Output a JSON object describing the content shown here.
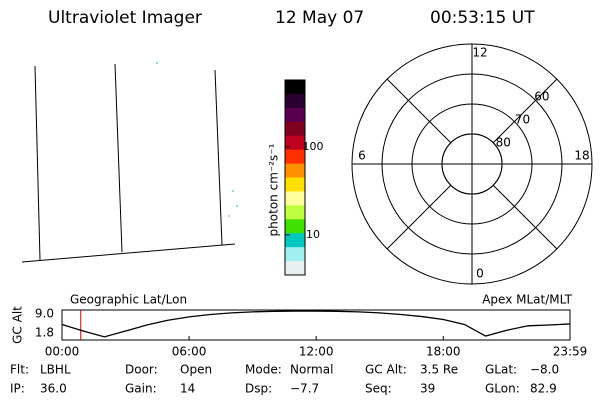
{
  "header": {
    "instrument": "Ultraviolet Imager",
    "date": "12 May 07",
    "time": "00:53:15 UT"
  },
  "map": {
    "label": "Geographic Lat/Lon"
  },
  "colorbar": {
    "label": "photon cm⁻²s⁻¹",
    "log": true,
    "lim": [
      3.5,
      575
    ],
    "ticks": [
      10,
      100
    ],
    "colors": [
      "#000000",
      "#2a0030",
      "#5a0050",
      "#800020",
      "#c00020",
      "#ff3000",
      "#ff9000",
      "#ffe000",
      "#ffffa0",
      "#c0ff40",
      "#40e000",
      "#00c8c0",
      "#a0f0f0",
      "#e8f0f0"
    ]
  },
  "polar": {
    "label": "Apex MLat/MLT",
    "mlt_labels": [
      12,
      18,
      6,
      0
    ],
    "lat_labels": [
      80,
      70,
      60
    ]
  },
  "chart_data": {
    "type": "line",
    "ylabel": "GC Alt",
    "x": [
      0,
      1,
      2,
      3,
      4,
      5,
      6,
      7,
      8,
      9,
      10,
      11,
      12,
      13,
      14,
      15,
      16,
      17,
      18,
      19,
      20,
      21,
      22,
      23,
      23.983
    ],
    "values": [
      5.0,
      2.5,
      0.3,
      2.5,
      4.8,
      6.6,
      7.9,
      8.8,
      9.4,
      9.8,
      10.0,
      10.1,
      10.1,
      10.0,
      9.8,
      9.4,
      8.8,
      8.0,
      6.9,
      5.0,
      0.6,
      2.8,
      4.5,
      4.8,
      5.2
    ],
    "color": "#000000",
    "marker_x": 0.8875,
    "marker_color": "#c00000",
    "xlim": [
      0,
      23.983
    ],
    "ylim": [
      -0.9,
      10.5
    ],
    "xticks": [
      {
        "value": 0,
        "label": "00:00"
      },
      {
        "value": 6,
        "label": "06:00"
      },
      {
        "value": 12,
        "label": "12:00"
      },
      {
        "value": 18,
        "label": "18:00"
      },
      {
        "value": 23.983,
        "label": "23:59"
      }
    ],
    "yticks": [
      1.8,
      {
        "value": 9,
        "label": "9.0"
      }
    ]
  },
  "footer": [
    [
      {
        "label": "Flt:",
        "value": "LBHL"
      },
      {
        "label": "Door:",
        "value": "Open"
      },
      {
        "label": "Mode:",
        "value": "Normal"
      },
      {
        "label": "GC Alt:",
        "value": "3.5 Re"
      },
      {
        "label": "GLat:",
        "value": "−8.0"
      }
    ],
    [
      {
        "label": "IP:",
        "value": "36.0"
      },
      {
        "label": "Gain:",
        "value": "14"
      },
      {
        "label": "Dsp:",
        "value": "−7.7"
      },
      {
        "label": "Seq:",
        "value": "39"
      },
      {
        "label": "GLon:",
        "value": "82.9"
      }
    ]
  ]
}
